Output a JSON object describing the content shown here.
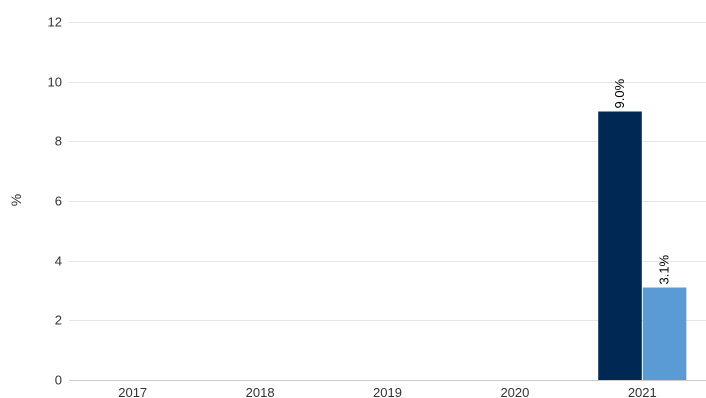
{
  "chart_data": {
    "type": "bar",
    "title": "",
    "xlabel": "",
    "ylabel": "%",
    "ylim": [
      0,
      12
    ],
    "yticks": [
      0,
      2,
      4,
      6,
      8,
      10,
      12
    ],
    "categories": [
      "2017",
      "2018",
      "2019",
      "2020",
      "2021"
    ],
    "series": [
      {
        "values": [
          null,
          null,
          null,
          null,
          9.0
        ],
        "labels": [
          "",
          "",
          "",
          "",
          "9.0%"
        ],
        "color": "#002855"
      },
      {
        "values": [
          null,
          null,
          null,
          null,
          3.1
        ],
        "labels": [
          "",
          "",
          "",
          "",
          "3.1%"
        ],
        "color": "#5b9bd5"
      }
    ],
    "grid": true,
    "legend": "none"
  }
}
